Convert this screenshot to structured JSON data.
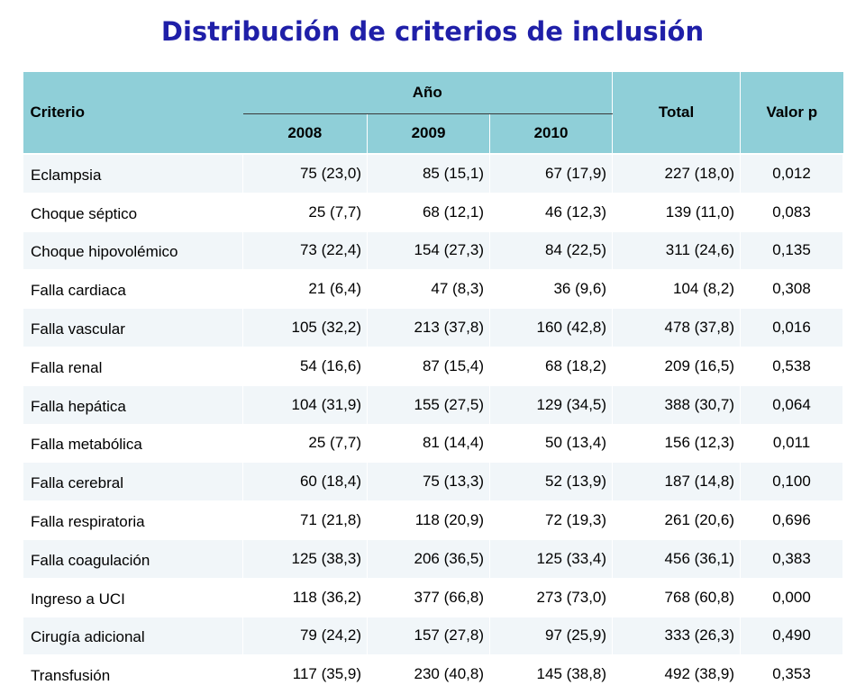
{
  "title": "Distribución de criterios de inclusión",
  "table": {
    "headers": {
      "criterio": "Criterio",
      "anio": "Año",
      "years": [
        "2008",
        "2009",
        "2010"
      ],
      "total": "Total",
      "valor_p": "Valor p"
    },
    "rows": [
      {
        "criterio": "Eclampsia",
        "y2008": "75 (23,0)",
        "y2009": "85 (15,1)",
        "y2010": "67 (17,9)",
        "total": "227 (18,0)",
        "p": "0,012"
      },
      {
        "criterio": "Choque séptico",
        "y2008": "25 (7,7)",
        "y2009": "68 (12,1)",
        "y2010": "46 (12,3)",
        "total": "139 (11,0)",
        "p": "0,083"
      },
      {
        "criterio": "Choque hipovolémico",
        "y2008": "73 (22,4)",
        "y2009": "154 (27,3)",
        "y2010": "84 (22,5)",
        "total": "311 (24,6)",
        "p": "0,135"
      },
      {
        "criterio": "Falla cardiaca",
        "y2008": "21 (6,4)",
        "y2009": "47 (8,3)",
        "y2010": "36 (9,6)",
        "total": "104 (8,2)",
        "p": "0,308"
      },
      {
        "criterio": "Falla vascular",
        "y2008": "105 (32,2)",
        "y2009": "213 (37,8)",
        "y2010": "160 (42,8)",
        "total": "478 (37,8)",
        "p": "0,016"
      },
      {
        "criterio": "Falla renal",
        "y2008": "54 (16,6)",
        "y2009": "87 (15,4)",
        "y2010": "68 (18,2)",
        "total": "209 (16,5)",
        "p": "0,538"
      },
      {
        "criterio": "Falla hepática",
        "y2008": "104 (31,9)",
        "y2009": "155 (27,5)",
        "y2010": "129 (34,5)",
        "total": "388 (30,7)",
        "p": "0,064"
      },
      {
        "criterio": "Falla metabólica",
        "y2008": "25 (7,7)",
        "y2009": "81 (14,4)",
        "y2010": "50 (13,4)",
        "total": "156 (12,3)",
        "p": "0,011"
      },
      {
        "criterio": "Falla cerebral",
        "y2008": "60 (18,4)",
        "y2009": "75 (13,3)",
        "y2010": "52 (13,9)",
        "total": "187 (14,8)",
        "p": "0,100"
      },
      {
        "criterio": "Falla respiratoria",
        "y2008": "71 (21,8)",
        "y2009": "118 (20,9)",
        "y2010": "72 (19,3)",
        "total": "261 (20,6)",
        "p": "0,696"
      },
      {
        "criterio": "Falla coagulación",
        "y2008": "125 (38,3)",
        "y2009": "206 (36,5)",
        "y2010": "125 (33,4)",
        "total": "456 (36,1)",
        "p": "0,383"
      },
      {
        "criterio": "Ingreso a UCI",
        "y2008": "118 (36,2)",
        "y2009": "377 (66,8)",
        "y2010": "273 (73,0)",
        "total": "768 (60,8)",
        "p": "0,000"
      },
      {
        "criterio": "Cirugía adicional",
        "y2008": "79 (24,2)",
        "y2009": "157 (27,8)",
        "y2010": "97 (25,9)",
        "total": "333 (26,3)",
        "p": "0,490"
      },
      {
        "criterio": "Transfusión",
        "y2008": "117 (35,9)",
        "y2009": "230 (40,8)",
        "y2010": "145 (38,8)",
        "total": "492 (38,9)",
        "p": "0,353"
      }
    ]
  },
  "colors": {
    "title": "#1f1fa8",
    "header_bg": "#8fcfd8",
    "row_alt_bg": "#f1f6f9"
  }
}
